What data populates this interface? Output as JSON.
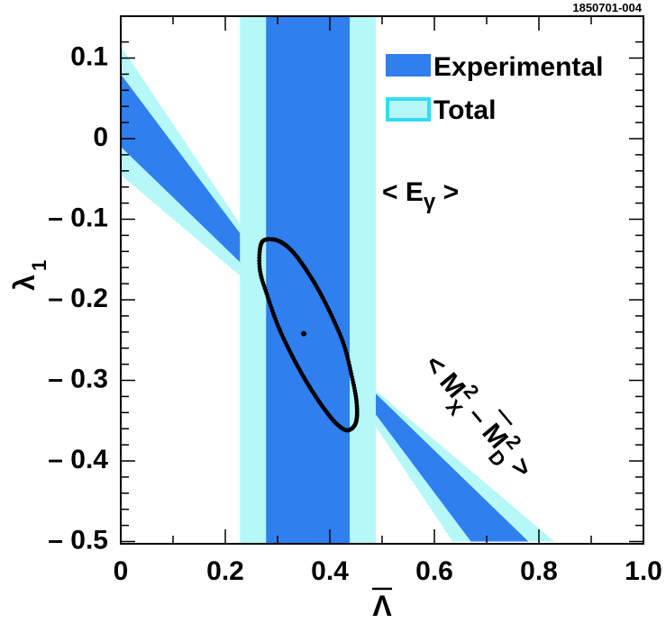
{
  "figure_id": "1850701-004",
  "chart_data": {
    "type": "scatter",
    "title": "",
    "xlabel_symbol": "Λ",
    "xlabel_overline": true,
    "ylabel_symbol": "λ",
    "ylabel_subscript": "1",
    "xlim": [
      0,
      1.0
    ],
    "ylim": [
      -0.5,
      0.13
    ],
    "x_ticks": [
      {
        "value": 0,
        "label": "0"
      },
      {
        "value": 0.2,
        "label": "0.2"
      },
      {
        "value": 0.4,
        "label": "0.4"
      },
      {
        "value": 0.6,
        "label": "0.6"
      },
      {
        "value": 0.8,
        "label": "0.8"
      },
      {
        "value": 1.0,
        "label": "1.0"
      }
    ],
    "y_ticks": [
      {
        "value": 0.1,
        "label": "0.1"
      },
      {
        "value": 0,
        "label": "0"
      },
      {
        "value": -0.1,
        "label": "– 0.1"
      },
      {
        "value": -0.2,
        "label": "– 0.2"
      },
      {
        "value": -0.3,
        "label": "– 0.3"
      },
      {
        "value": -0.4,
        "label": "– 0.4"
      },
      {
        "value": -0.5,
        "label": "– 0.5"
      }
    ],
    "legend": {
      "position": "top-right",
      "entries": [
        {
          "name": "Experimental",
          "color": "#2f7fef"
        },
        {
          "name": "Total",
          "color": "#b6f8f8",
          "border": "#33dcef"
        }
      ]
    },
    "colors": {
      "experimental": "#2f7fef",
      "total": "#b6f8f8",
      "total_border": "#33dcef",
      "contour": "#000000"
    },
    "bands": [
      {
        "name": "E_gamma",
        "label": "< E",
        "label_sub": "γ",
        "label_end": " >",
        "orientation": "vertical",
        "experimental": [
          0.278,
          0.438
        ],
        "total": [
          0.228,
          0.488
        ]
      },
      {
        "name": "M_X moment",
        "label": "< M",
        "label_sub1": "X",
        "label_mid": "2",
        "label_dash": " – ",
        "label_m2": "M",
        "label_sub2": "D",
        "label_sup2": "2",
        "label_end": " >",
        "orientation": "diagonal",
        "experimental_lines": [
          {
            "x0": 0,
            "y0": 0.08,
            "x1": 0.67,
            "y1": -0.5
          },
          {
            "x0": 0,
            "y0": -0.01,
            "x1": 0.78,
            "y1": -0.5
          }
        ],
        "total_lines": [
          {
            "x0": 0,
            "y0": 0.115,
            "x1": 0.635,
            "y1": -0.5
          },
          {
            "x0": 0,
            "y0": -0.045,
            "x1": 0.83,
            "y1": -0.5
          }
        ]
      }
    ],
    "central_value": {
      "x": 0.35,
      "y": -0.242
    },
    "contour": {
      "type": "ellipse",
      "center": {
        "x": 0.357,
        "y": -0.242
      },
      "points": [
        [
          0.269,
          -0.13
        ],
        [
          0.29,
          -0.125
        ],
        [
          0.313,
          -0.131
        ],
        [
          0.335,
          -0.145
        ],
        [
          0.358,
          -0.166
        ],
        [
          0.381,
          -0.191
        ],
        [
          0.405,
          -0.222
        ],
        [
          0.427,
          -0.256
        ],
        [
          0.441,
          -0.292
        ],
        [
          0.451,
          -0.326
        ],
        [
          0.45,
          -0.352
        ],
        [
          0.434,
          -0.362
        ],
        [
          0.413,
          -0.354
        ],
        [
          0.39,
          -0.336
        ],
        [
          0.366,
          -0.313
        ],
        [
          0.344,
          -0.289
        ],
        [
          0.322,
          -0.262
        ],
        [
          0.3,
          -0.231
        ],
        [
          0.281,
          -0.196
        ],
        [
          0.266,
          -0.162
        ]
      ]
    }
  }
}
